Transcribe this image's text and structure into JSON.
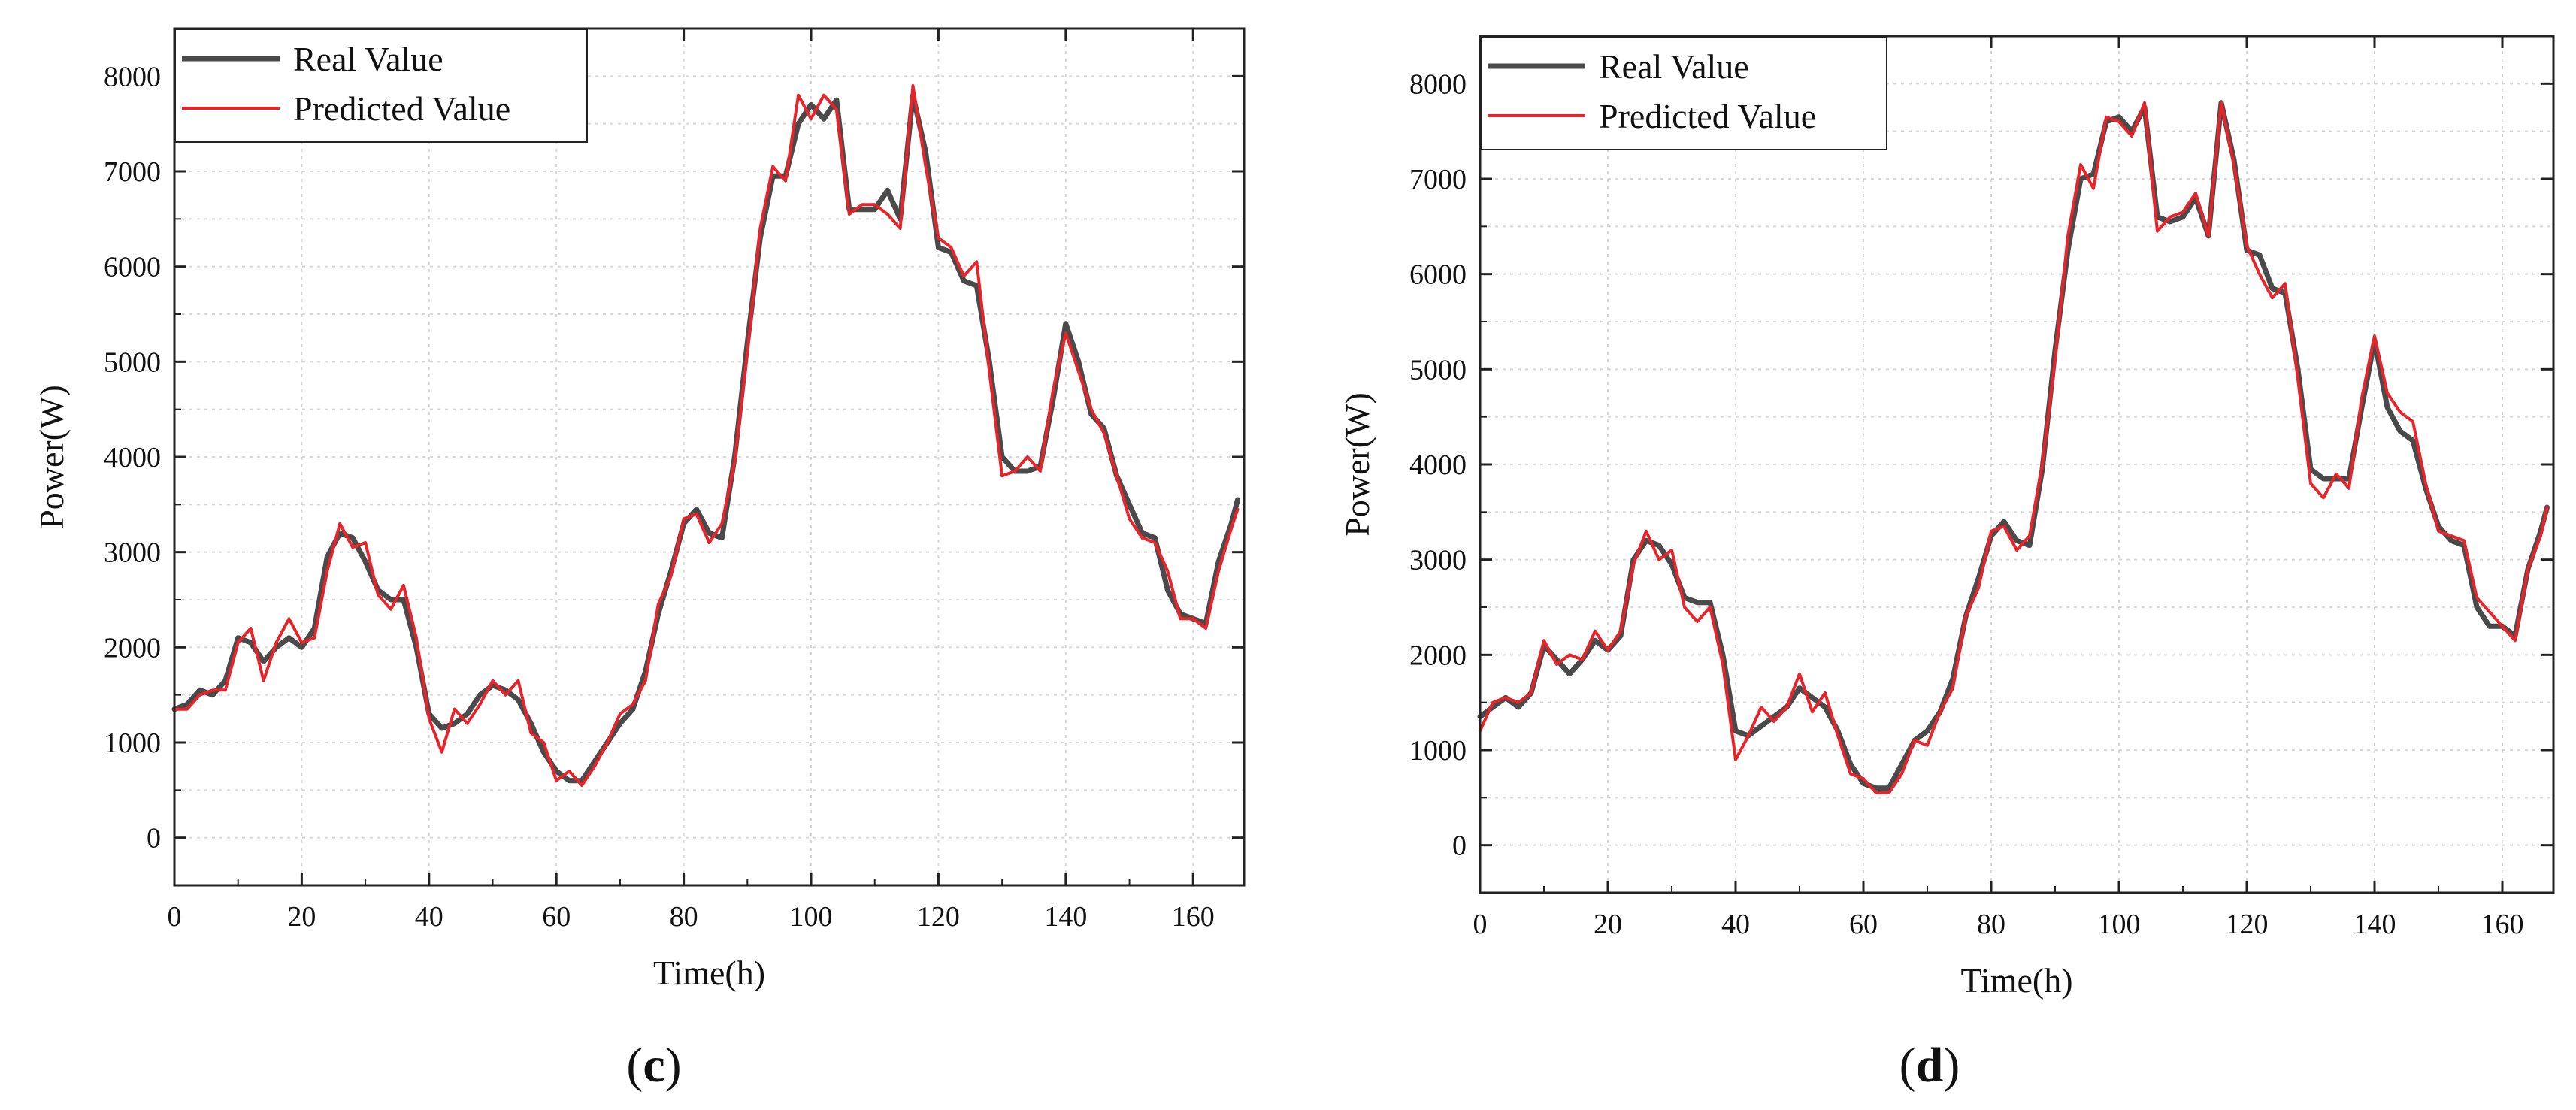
{
  "colors": {
    "real": "#4a4a4a",
    "predicted": "#e8242b",
    "axis": "#222222",
    "grid": "#d8d8d8"
  },
  "chart_data": [
    {
      "id": "c",
      "caption": "c",
      "type": "line",
      "xlabel": "Time(h)",
      "ylabel": "Power(W)",
      "xlim": [
        0,
        168
      ],
      "ylim": [
        -500,
        8500
      ],
      "xticks": [
        0,
        20,
        40,
        60,
        80,
        100,
        120,
        140,
        160
      ],
      "yticks": [
        0,
        1000,
        2000,
        3000,
        4000,
        5000,
        6000,
        7000,
        8000
      ],
      "grid": true,
      "legend_position": "top-left",
      "series": [
        {
          "name": "Real Value",
          "x": [
            0,
            2,
            4,
            6,
            8,
            10,
            12,
            14,
            16,
            18,
            20,
            22,
            24,
            26,
            28,
            30,
            32,
            34,
            36,
            38,
            40,
            42,
            44,
            46,
            48,
            50,
            52,
            54,
            56,
            58,
            60,
            62,
            64,
            66,
            68,
            70,
            72,
            74,
            76,
            78,
            80,
            82,
            84,
            86,
            88,
            90,
            92,
            94,
            96,
            98,
            100,
            102,
            104,
            106,
            108,
            110,
            112,
            114,
            116,
            118,
            120,
            122,
            124,
            126,
            128,
            130,
            132,
            134,
            136,
            138,
            140,
            142,
            144,
            146,
            148,
            150,
            152,
            154,
            156,
            158,
            160,
            162,
            164,
            166,
            167
          ],
          "values": [
            1350,
            1400,
            1550,
            1500,
            1650,
            2100,
            2050,
            1850,
            2000,
            2100,
            2000,
            2200,
            2950,
            3200,
            3150,
            2900,
            2600,
            2500,
            2500,
            2000,
            1300,
            1150,
            1200,
            1300,
            1500,
            1600,
            1550,
            1450,
            1200,
            900,
            700,
            600,
            600,
            800,
            1000,
            1200,
            1350,
            1750,
            2350,
            2800,
            3300,
            3450,
            3200,
            3150,
            4000,
            5200,
            6300,
            6950,
            6950,
            7500,
            7700,
            7550,
            7750,
            6600,
            6600,
            6600,
            6800,
            6500,
            7800,
            7200,
            6200,
            6150,
            5850,
            5800,
            5000,
            4000,
            3850,
            3850,
            3900,
            4600,
            5400,
            5000,
            4450,
            4300,
            3800,
            3500,
            3200,
            3150,
            2600,
            2350,
            2300,
            2250,
            2900,
            3300,
            3550
          ]
        },
        {
          "name": "Predicted Value",
          "x": [
            0,
            2,
            4,
            6,
            8,
            10,
            12,
            14,
            16,
            18,
            20,
            22,
            24,
            26,
            28,
            30,
            32,
            34,
            36,
            38,
            40,
            42,
            44,
            46,
            48,
            50,
            52,
            54,
            56,
            58,
            60,
            62,
            64,
            66,
            68,
            70,
            72,
            74,
            76,
            78,
            80,
            82,
            84,
            86,
            88,
            90,
            92,
            94,
            96,
            98,
            100,
            102,
            104,
            106,
            108,
            110,
            112,
            114,
            116,
            118,
            120,
            122,
            124,
            126,
            128,
            130,
            132,
            134,
            136,
            138,
            140,
            142,
            144,
            146,
            148,
            150,
            152,
            154,
            156,
            158,
            160,
            162,
            164,
            166,
            167
          ],
          "values": [
            1350,
            1350,
            1500,
            1550,
            1550,
            2050,
            2200,
            1650,
            2050,
            2300,
            2050,
            2100,
            2800,
            3300,
            3050,
            3100,
            2550,
            2400,
            2650,
            2100,
            1250,
            900,
            1350,
            1200,
            1400,
            1650,
            1500,
            1650,
            1100,
            1000,
            600,
            700,
            550,
            750,
            1000,
            1300,
            1400,
            1650,
            2450,
            2750,
            3350,
            3400,
            3100,
            3300,
            3950,
            5100,
            6400,
            7050,
            6900,
            7800,
            7550,
            7800,
            7650,
            6550,
            6650,
            6650,
            6550,
            6400,
            7900,
            7050,
            6300,
            6200,
            5900,
            6050,
            4900,
            3800,
            3850,
            4000,
            3850,
            4700,
            5300,
            4900,
            4500,
            4250,
            3800,
            3350,
            3150,
            3100,
            2800,
            2300,
            2300,
            2200,
            2800,
            3250,
            3450
          ]
        }
      ]
    },
    {
      "id": "d",
      "caption": "d",
      "type": "line",
      "xlabel": "Time(h)",
      "ylabel": "Power(W)",
      "xlim": [
        0,
        168
      ],
      "ylim": [
        -500,
        8500
      ],
      "xticks": [
        0,
        20,
        40,
        60,
        80,
        100,
        120,
        140,
        160
      ],
      "yticks": [
        0,
        1000,
        2000,
        3000,
        4000,
        5000,
        6000,
        7000,
        8000
      ],
      "grid": true,
      "legend_position": "top-left",
      "series": [
        {
          "name": "Real Value",
          "x": [
            0,
            2,
            4,
            6,
            8,
            10,
            12,
            14,
            16,
            18,
            20,
            22,
            24,
            26,
            28,
            30,
            32,
            34,
            36,
            38,
            40,
            42,
            44,
            46,
            48,
            50,
            52,
            54,
            56,
            58,
            60,
            62,
            64,
            66,
            68,
            70,
            72,
            74,
            76,
            78,
            80,
            82,
            84,
            86,
            88,
            90,
            92,
            94,
            96,
            98,
            100,
            102,
            104,
            106,
            108,
            110,
            112,
            114,
            116,
            118,
            120,
            122,
            124,
            126,
            128,
            130,
            132,
            134,
            136,
            138,
            140,
            142,
            144,
            146,
            148,
            150,
            152,
            154,
            156,
            158,
            160,
            162,
            164,
            166,
            167
          ],
          "values": [
            1350,
            1450,
            1550,
            1450,
            1600,
            2100,
            1950,
            1800,
            1950,
            2150,
            2050,
            2200,
            3000,
            3200,
            3150,
            2950,
            2600,
            2550,
            2550,
            2000,
            1200,
            1150,
            1250,
            1350,
            1450,
            1650,
            1550,
            1450,
            1200,
            850,
            650,
            600,
            600,
            850,
            1100,
            1200,
            1400,
            1750,
            2400,
            2800,
            3250,
            3400,
            3200,
            3150,
            3950,
            5200,
            6250,
            7000,
            7050,
            7600,
            7650,
            7500,
            7750,
            6600,
            6550,
            6600,
            6800,
            6400,
            7800,
            7200,
            6250,
            6200,
            5850,
            5800,
            5000,
            3950,
            3850,
            3850,
            3850,
            4600,
            5300,
            4600,
            4350,
            4250,
            3750,
            3350,
            3200,
            3150,
            2500,
            2300,
            2300,
            2200,
            2900,
            3300,
            3550
          ]
        },
        {
          "name": "Predicted Value",
          "x": [
            0,
            2,
            4,
            6,
            8,
            10,
            12,
            14,
            16,
            18,
            20,
            22,
            24,
            26,
            28,
            30,
            32,
            34,
            36,
            38,
            40,
            42,
            44,
            46,
            48,
            50,
            52,
            54,
            56,
            58,
            60,
            62,
            64,
            66,
            68,
            70,
            72,
            74,
            76,
            78,
            80,
            82,
            84,
            86,
            88,
            90,
            92,
            94,
            96,
            98,
            100,
            102,
            104,
            106,
            108,
            110,
            112,
            114,
            116,
            118,
            120,
            122,
            124,
            126,
            128,
            130,
            132,
            134,
            136,
            138,
            140,
            142,
            144,
            146,
            148,
            150,
            152,
            154,
            156,
            158,
            160,
            162,
            164,
            166,
            167
          ],
          "values": [
            1200,
            1500,
            1550,
            1500,
            1600,
            2150,
            1900,
            2000,
            1950,
            2250,
            2050,
            2250,
            2950,
            3300,
            3000,
            3100,
            2500,
            2350,
            2500,
            1900,
            900,
            1150,
            1450,
            1300,
            1450,
            1800,
            1400,
            1600,
            1150,
            750,
            700,
            550,
            550,
            750,
            1100,
            1050,
            1400,
            1650,
            2400,
            2700,
            3300,
            3350,
            3100,
            3250,
            4000,
            5100,
            6400,
            7150,
            6900,
            7650,
            7600,
            7450,
            7800,
            6450,
            6600,
            6650,
            6850,
            6400,
            7800,
            7150,
            6300,
            6000,
            5750,
            5900,
            4900,
            3800,
            3650,
            3900,
            3750,
            4700,
            5350,
            4750,
            4550,
            4450,
            3800,
            3300,
            3250,
            3200,
            2600,
            2450,
            2300,
            2150,
            2900,
            3250,
            3550
          ]
        }
      ]
    }
  ]
}
